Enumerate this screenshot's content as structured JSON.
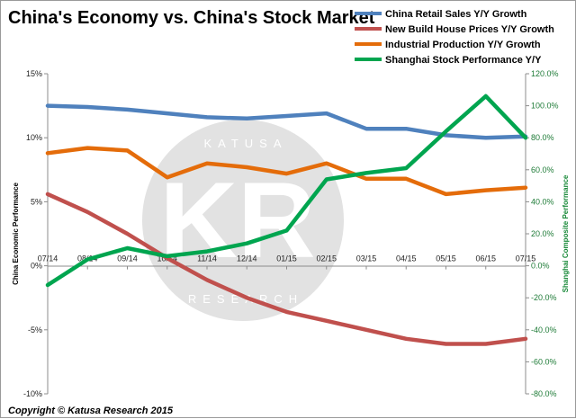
{
  "watermark": {
    "initials": "KR",
    "top": "KATUSA",
    "bottom": "RESEARCH"
  },
  "copyright": "Copyright © Katusa Research 2015",
  "chart_data": {
    "type": "line",
    "title": "China's Economy vs. China's Stock Market",
    "ylabel_left": "China Economic Performance",
    "ylabel_right": "Shanghai Composite Performance",
    "categories": [
      "07/14",
      "08/14",
      "09/14",
      "10/14",
      "11/14",
      "12/14",
      "01/15",
      "02/15",
      "03/15",
      "04/15",
      "05/15",
      "06/15",
      "07/15"
    ],
    "left_axis": {
      "range": [
        -10,
        15
      ],
      "ticks": [
        15,
        10,
        5,
        0,
        -5,
        -10
      ],
      "tick_labels": [
        "15%",
        "10%",
        "5%",
        "0%",
        "-5%",
        "-10%"
      ]
    },
    "right_axis": {
      "range": [
        -80,
        120
      ],
      "ticks": [
        120,
        100,
        80,
        60,
        40,
        20,
        0,
        -20,
        -40,
        -60,
        -80
      ],
      "tick_labels": [
        "120.0%",
        "100.0%",
        "80.0%",
        "60.0%",
        "40.0%",
        "20.0%",
        "0.0%",
        "-20.0%",
        "-40.0%",
        "-60.0%",
        "-80.0%"
      ]
    },
    "grid": false,
    "legend_position": "top-right",
    "series": [
      {
        "name": "China Retail Sales Y/Y Growth",
        "axis": "left",
        "color": "#4f81bd",
        "values": [
          12.5,
          12.4,
          12.2,
          11.9,
          11.6,
          11.5,
          11.7,
          11.9,
          10.7,
          10.7,
          10.2,
          10.0,
          10.1
        ]
      },
      {
        "name": "New Build House Prices Y/Y Growth",
        "axis": "left",
        "color": "#c0504d",
        "values": [
          5.6,
          4.2,
          2.5,
          0.6,
          -1.1,
          -2.5,
          -3.6,
          -4.3,
          -5.0,
          -5.7,
          -6.1,
          -6.1,
          -5.7
        ]
      },
      {
        "name": "Industrial Production Y/Y Growth",
        "axis": "left",
        "color": "#e46c0a",
        "values": [
          8.8,
          9.2,
          9.0,
          6.9,
          8.0,
          7.7,
          7.2,
          8.0,
          6.8,
          6.8,
          5.6,
          5.9,
          6.1
        ]
      },
      {
        "name": "Shanghai Stock Performance Y/Y",
        "axis": "right",
        "color": "#00a54f",
        "values": [
          -12,
          4,
          11,
          6,
          9,
          14,
          22,
          54,
          58,
          61,
          84,
          106,
          80
        ]
      }
    ]
  }
}
